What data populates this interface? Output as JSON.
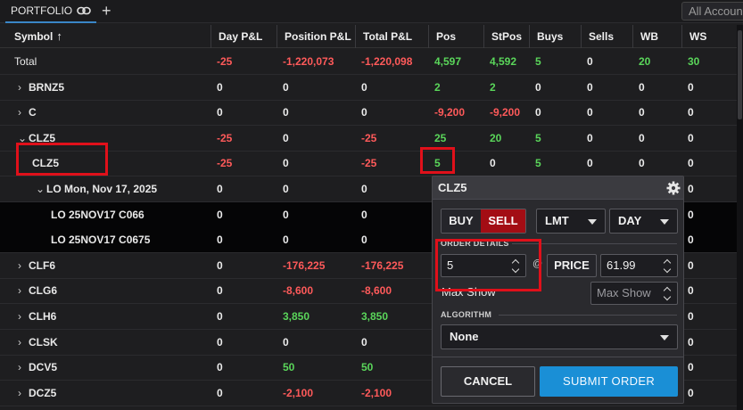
{
  "topbar": {
    "tab_label": "PORTFOLIO",
    "tab_icon": "link-icon",
    "add_icon": "plus-icon",
    "add_label": "+",
    "account_select": "All Accounts"
  },
  "columns": [
    "Symbol",
    "Day P&L",
    "Position P&L",
    "Total P&L",
    "Pos",
    "StPos",
    "Buys",
    "Sells",
    "WB",
    "WS"
  ],
  "sort": {
    "column": "Symbol",
    "direction": "ascending",
    "icon": "arrow-up-icon",
    "glyph": "↑"
  },
  "rows": [
    {
      "symbol": "Total",
      "expand": "",
      "day_pl": "-25",
      "position_pl": "-1,220,073",
      "total_pl": "-1,220,098",
      "pos": "4,597",
      "stpos": "4,592",
      "buys": "5",
      "sells": "0",
      "wb": "20",
      "ws": "30"
    },
    {
      "symbol": "BRNZ5",
      "expand": "›",
      "day_pl": "0",
      "position_pl": "0",
      "total_pl": "0",
      "pos": "2",
      "stpos": "2",
      "buys": "0",
      "sells": "0",
      "wb": "0",
      "ws": "0"
    },
    {
      "symbol": "C",
      "expand": "›",
      "day_pl": "0",
      "position_pl": "0",
      "total_pl": "0",
      "pos": "-9,200",
      "stpos": "-9,200",
      "buys": "0",
      "sells": "0",
      "wb": "0",
      "ws": "0"
    },
    {
      "symbol": "CLZ5",
      "expand": "⌄",
      "day_pl": "-25",
      "position_pl": "0",
      "total_pl": "-25",
      "pos": "25",
      "stpos": "20",
      "buys": "5",
      "sells": "0",
      "wb": "0",
      "ws": "0"
    },
    {
      "symbol": "CLZ5",
      "expand": "",
      "day_pl": "-25",
      "position_pl": "0",
      "total_pl": "-25",
      "pos": "5",
      "stpos": "0",
      "buys": "5",
      "sells": "0",
      "wb": "0",
      "ws": "0"
    },
    {
      "symbol": "LO Mon, Nov 17, 2025",
      "expand": "⌄",
      "day_pl": "0",
      "position_pl": "0",
      "total_pl": "0",
      "pos": "",
      "stpos": "",
      "buys": "",
      "sells": "",
      "wb": "",
      "ws": "0"
    },
    {
      "symbol": "LO 25NOV17 C066",
      "expand": "",
      "day_pl": "0",
      "position_pl": "0",
      "total_pl": "0",
      "pos": "",
      "stpos": "",
      "buys": "",
      "sells": "",
      "wb": "",
      "ws": "0"
    },
    {
      "symbol": "LO 25NOV17 C0675",
      "expand": "",
      "day_pl": "0",
      "position_pl": "0",
      "total_pl": "0",
      "pos": "",
      "stpos": "",
      "buys": "",
      "sells": "",
      "wb": "",
      "ws": "0"
    },
    {
      "symbol": "CLF6",
      "expand": "›",
      "day_pl": "0",
      "position_pl": "-176,225",
      "total_pl": "-176,225",
      "pos": "",
      "stpos": "",
      "buys": "",
      "sells": "",
      "wb": "",
      "ws": "0"
    },
    {
      "symbol": "CLG6",
      "expand": "›",
      "day_pl": "0",
      "position_pl": "-8,600",
      "total_pl": "-8,600",
      "pos": "",
      "stpos": "",
      "buys": "",
      "sells": "",
      "wb": "",
      "ws": "0"
    },
    {
      "symbol": "CLH6",
      "expand": "›",
      "day_pl": "0",
      "position_pl": "3,850",
      "total_pl": "3,850",
      "pos": "",
      "stpos": "",
      "buys": "",
      "sells": "",
      "wb": "",
      "ws": "0"
    },
    {
      "symbol": "CLSK",
      "expand": "›",
      "day_pl": "0",
      "position_pl": "0",
      "total_pl": "0",
      "pos": "",
      "stpos": "",
      "buys": "",
      "sells": "",
      "wb": "",
      "ws": "0"
    },
    {
      "symbol": "DCV5",
      "expand": "›",
      "day_pl": "0",
      "position_pl": "50",
      "total_pl": "50",
      "pos": "",
      "stpos": "",
      "buys": "",
      "sells": "",
      "wb": "",
      "ws": "0"
    },
    {
      "symbol": "DCZ5",
      "expand": "›",
      "day_pl": "0",
      "position_pl": "-2,100",
      "total_pl": "-2,100",
      "pos": "",
      "stpos": "",
      "buys": "",
      "sells": "",
      "wb": "",
      "ws": "0"
    }
  ],
  "ticket": {
    "title": "CLZ5",
    "settings_icon": "gear-icon",
    "buy_label": "BUY",
    "sell_label": "SELL",
    "order_type": "LMT",
    "tif": "DAY",
    "order_details_label": "ORDER DETAILS",
    "quantity": "5",
    "at_symbol": "@",
    "price_label": "PRICE",
    "price": "61.99",
    "max_show_label": "Max Show",
    "max_show_placeholder": "Max Show",
    "algorithm_label": "ALGORITHM",
    "algorithm": "None",
    "cancel_label": "CANCEL",
    "submit_label": "SUBMIT ORDER"
  },
  "colors": {
    "negative": "#ff5a5a",
    "positive": "#5ad65a",
    "sell_active": "#a30d14",
    "submit": "#1a8fd6",
    "highlight": "#e0101a",
    "tab_underline": "#3a86c8"
  }
}
